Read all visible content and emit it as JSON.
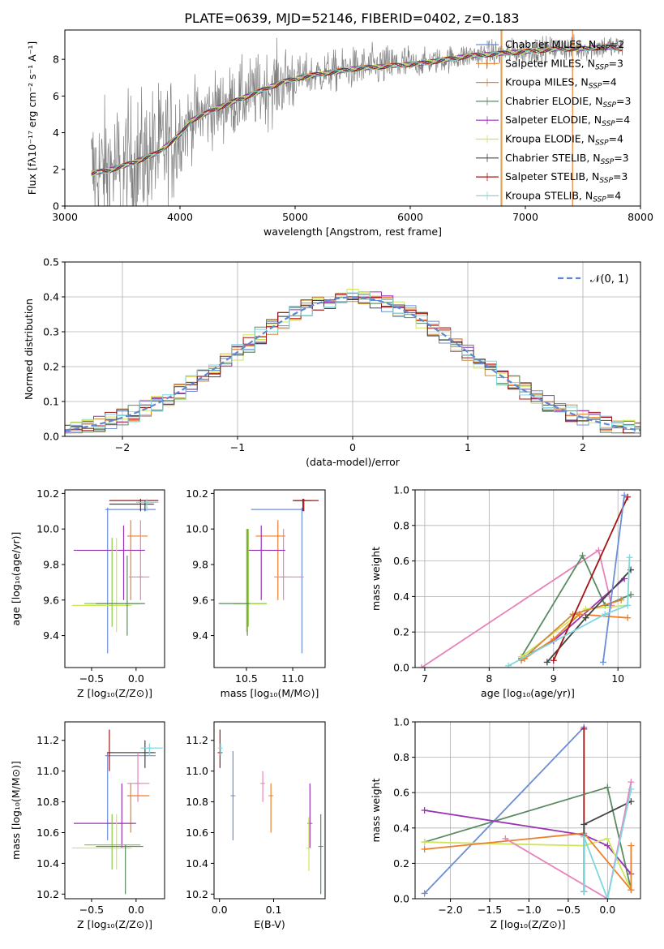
{
  "title": "PLATE=0639, MJD=52146, FIBERID=0402, z=0.183",
  "colors": {
    "CM": "#6b8ed6",
    "SM": "#ee7e2a",
    "KM": "#d1883a",
    "CE": "#5b8a63",
    "SE": "#9932b5",
    "KE": "#cfe65a",
    "CS": "#444444",
    "SS": "#a31515",
    "KS": "#7fd8de",
    "pink": "#e584bb",
    "lime": "#8acd3c",
    "data": "#808080",
    "normal": "#5f87d6"
  },
  "chart_data": [
    {
      "id": "spectrum",
      "type": "line",
      "xlabel": "wavelength [Angstrom, rest frame]",
      "ylabel": "Flux [fλ10⁻¹⁷ erg cm⁻² s⁻¹ A⁻¹]",
      "xlim": [
        3000,
        8000
      ],
      "ylim": [
        0,
        9.6
      ],
      "xticks": [
        "3000",
        "4000",
        "5000",
        "6000",
        "7000",
        "8000"
      ],
      "yticks": [
        "0",
        "2",
        "4",
        "6",
        "8"
      ],
      "legend": "upper-right",
      "continuum": {
        "x": [
          3230,
          3400,
          3600,
          3800,
          4000,
          4100,
          4300,
          4500,
          4700,
          4900,
          5100,
          5300,
          5500,
          5700,
          5900,
          6100,
          6300,
          6500,
          6700,
          6900,
          7100,
          7300,
          7500,
          7700,
          7850
        ],
        "y": [
          1.8,
          2.0,
          2.4,
          2.9,
          3.9,
          4.7,
          5.3,
          5.8,
          6.3,
          6.8,
          7.1,
          7.3,
          7.5,
          7.6,
          7.7,
          7.8,
          8.0,
          8.2,
          8.3,
          8.4,
          8.5,
          8.6,
          8.6,
          8.7,
          8.6
        ]
      },
      "series": [
        {
          "key": "CM",
          "name": "Chabrier MILES, N_SSP=2",
          "label": "Chabrier MILES, N",
          "sub": "SSP",
          "val": "=2"
        },
        {
          "key": "SM",
          "name": "Salpeter MILES, N_SSP=3",
          "label": "Salpeter MILES, N",
          "sub": "SSP",
          "val": "=3"
        },
        {
          "key": "KM",
          "name": "Kroupa MILES, N_SSP=4",
          "label": "Kroupa MILES, N",
          "sub": "SSP",
          "val": "=4"
        },
        {
          "key": "CE",
          "name": "Chabrier ELODIE, N_SSP=3",
          "label": "Chabrier ELODIE, N",
          "sub": "SSP",
          "val": "=3"
        },
        {
          "key": "SE",
          "name": "Salpeter ELODIE, N_SSP=4",
          "label": "Salpeter ELODIE, N",
          "sub": "SSP",
          "val": "=4"
        },
        {
          "key": "KE",
          "name": "Kroupa ELODIE, N_SSP=4",
          "label": "Kroupa ELODIE, N",
          "sub": "SSP",
          "val": "=4"
        },
        {
          "key": "CS",
          "name": "Chabrier STELIB, N_SSP=3",
          "label": "Chabrier STELIB, N",
          "sub": "SSP",
          "val": "=3"
        },
        {
          "key": "SS",
          "name": "Salpeter STELIB, N_SSP=3",
          "label": "Salpeter STELIB, N",
          "sub": "SSP",
          "val": "=3"
        },
        {
          "key": "KS",
          "name": "Kroupa STELIB, N_SSP=4",
          "label": "Kroupa STELIB, N",
          "sub": "SSP",
          "val": "=4"
        }
      ]
    },
    {
      "id": "residuals",
      "type": "line",
      "xlabel": "(data-model)/error",
      "ylabel": "Normed distribution",
      "xlim": [
        -2.5,
        2.5
      ],
      "ylim": [
        0,
        0.5
      ],
      "xticks": [
        -2,
        -1,
        0,
        1,
        2
      ],
      "xticklabels": [
        "−2",
        "−1",
        "0",
        "1",
        "2"
      ],
      "yticks": [
        0,
        0.1,
        0.2,
        0.3,
        0.4,
        0.5
      ],
      "yticklabels": [
        "0.0",
        "0.1",
        "0.2",
        "0.3",
        "0.4",
        "0.5"
      ],
      "grid": true,
      "legend": "upper-right",
      "normal_label": "𝒩(0, 1)"
    },
    {
      "id": "age_vs_Z",
      "type": "scatter",
      "xlabel": "Z [log₁₀(Z/Z⊙)]",
      "ylabel": "age  [log₁₀(age/yr)]",
      "xlim": [
        -0.8,
        0.32
      ],
      "ylim": [
        9.22,
        10.22
      ],
      "xticks": [
        -0.5,
        0.0
      ],
      "xticklabels": [
        "−0.5",
        "0.0"
      ],
      "yticks": [
        9.4,
        9.6,
        9.8,
        10.0,
        10.2
      ],
      "yticklabels": [
        "9.4",
        "9.6",
        "9.8",
        "10.0",
        "10.2"
      ],
      "points": [
        {
          "c": "CM",
          "x": -0.32,
          "xl": -0.34,
          "xh": 0.22,
          "y": 10.11,
          "yl": 9.3,
          "yh": 10.12
        },
        {
          "c": "SM",
          "x": -0.06,
          "xl": -0.1,
          "xh": 0.13,
          "y": 9.96,
          "yl": 9.6,
          "yh": 10.05
        },
        {
          "c": "pink",
          "x": 0.05,
          "xl": -0.08,
          "xh": 0.15,
          "y": 9.73,
          "yl": 9.6,
          "yh": 10.05
        },
        {
          "c": "SE",
          "x": -0.14,
          "xl": -0.7,
          "xh": 0.1,
          "y": 9.88,
          "yl": 9.6,
          "yh": 10.02
        },
        {
          "c": "KE",
          "x": -0.22,
          "xl": -0.72,
          "xh": -0.05,
          "y": 9.57,
          "yl": 9.42,
          "yh": 9.95
        },
        {
          "c": "lime",
          "x": -0.27,
          "xl": -0.58,
          "xh": 0.05,
          "y": 9.58,
          "yl": 9.45,
          "yh": 9.95
        },
        {
          "c": "CE",
          "x": -0.1,
          "xl": -0.45,
          "xh": 0.1,
          "y": 9.58,
          "yl": 9.4,
          "yh": 9.85
        },
        {
          "c": "CS",
          "x": 0.1,
          "xl": -0.3,
          "xh": 0.2,
          "y": 10.14,
          "yl": 10.1,
          "yh": 10.16
        },
        {
          "c": "SS",
          "x": 0.05,
          "xl": -0.3,
          "xh": 0.25,
          "y": 10.16,
          "yl": 10.1,
          "yh": 10.17
        },
        {
          "c": "KS",
          "x": 0.12,
          "xl": 0.0,
          "xh": 0.25,
          "y": 10.15,
          "yl": 10.1,
          "yh": 10.17
        }
      ]
    },
    {
      "id": "age_vs_mass",
      "type": "scatter",
      "xlabel": "mass [log₁₀(M/M⊙)]",
      "ylabel": "",
      "xlim": [
        10.15,
        11.35
      ],
      "ylim": [
        9.22,
        10.22
      ],
      "xticks": [
        10.5,
        11.0
      ],
      "xticklabels": [
        "10.5",
        "11.0"
      ],
      "yticks": [
        9.4,
        9.6,
        9.8,
        10.0,
        10.2
      ],
      "yticklabels": [
        "9.4",
        "9.6",
        "9.8",
        "10.0",
        "10.2"
      ],
      "points": [
        {
          "c": "CM",
          "x": 11.1,
          "xl": 10.55,
          "xh": 11.12,
          "y": 10.11,
          "yl": 9.3,
          "yh": 10.12
        },
        {
          "c": "SM",
          "x": 10.84,
          "xl": 10.6,
          "xh": 10.92,
          "y": 9.96,
          "yl": 9.6,
          "yh": 10.05
        },
        {
          "c": "pink",
          "x": 10.9,
          "xl": 10.8,
          "xh": 11.12,
          "y": 9.73,
          "yl": 9.6,
          "yh": 10.0
        },
        {
          "c": "SE",
          "x": 10.66,
          "xl": 10.5,
          "xh": 10.92,
          "y": 9.88,
          "yl": 9.6,
          "yh": 10.02
        },
        {
          "c": "KE",
          "x": 10.5,
          "xl": 10.36,
          "xh": 10.7,
          "y": 9.58,
          "yl": 9.42,
          "yh": 10.0
        },
        {
          "c": "lime",
          "x": 10.52,
          "xl": 10.36,
          "xh": 10.72,
          "y": 9.58,
          "yl": 9.45,
          "yh": 10.0
        },
        {
          "c": "CE",
          "x": 10.51,
          "xl": 10.2,
          "xh": 10.52,
          "y": 9.58,
          "yl": 9.4,
          "yh": 10.0
        },
        {
          "c": "CS",
          "x": 11.11,
          "xl": 11.02,
          "xh": 11.2,
          "y": 10.16,
          "yl": 10.1,
          "yh": 10.17
        },
        {
          "c": "SS",
          "x": 11.12,
          "xl": 11.0,
          "xh": 11.28,
          "y": 10.16,
          "yl": 10.1,
          "yh": 10.17
        }
      ]
    },
    {
      "id": "massweight_vs_age",
      "type": "line",
      "xlabel": "age  [log₁₀(age/yr)]",
      "ylabel": "mass weight",
      "xlim": [
        6.85,
        10.35
      ],
      "ylim": [
        0,
        1
      ],
      "xticks": [
        7,
        8,
        9,
        10
      ],
      "xticklabels": [
        "7",
        "8",
        "9",
        "10"
      ],
      "yticks": [
        0,
        0.2,
        0.4,
        0.6,
        0.8,
        1.0
      ],
      "yticklabels": [
        "0.0",
        "0.2",
        "0.4",
        "0.6",
        "0.8",
        "1.0"
      ],
      "grid": true,
      "series": [
        {
          "c": "pink",
          "x": [
            6.95,
            9.7,
            9.9
          ],
          "y": [
            0.0,
            0.66,
            0.35
          ]
        },
        {
          "c": "CE",
          "x": [
            8.5,
            9.45,
            9.8,
            10.2
          ],
          "y": [
            0.06,
            0.63,
            0.35,
            0.41
          ]
        },
        {
          "c": "SE",
          "x": [
            8.5,
            9.0,
            10.1
          ],
          "y": [
            0.05,
            0.15,
            0.5
          ]
        },
        {
          "c": "KE",
          "x": [
            8.5,
            9.5,
            10.15
          ],
          "y": [
            0.06,
            0.33,
            0.35
          ]
        },
        {
          "c": "SM",
          "x": [
            8.55,
            9.0,
            9.4,
            10.15
          ],
          "y": [
            0.05,
            0.16,
            0.3,
            0.28
          ]
        },
        {
          "c": "KM",
          "x": [
            8.5,
            9.3,
            10.05
          ],
          "y": [
            0.04,
            0.3,
            0.38
          ]
        },
        {
          "c": "CS",
          "x": [
            8.9,
            9.5,
            10.2
          ],
          "y": [
            0.03,
            0.28,
            0.55
          ]
        },
        {
          "c": "SS",
          "x": [
            9.0,
            10.15
          ],
          "y": [
            0.04,
            0.96
          ]
        },
        {
          "c": "CM",
          "x": [
            9.77,
            10.1
          ],
          "y": [
            0.03,
            0.97
          ]
        },
        {
          "c": "KS",
          "x": [
            8.3,
            9.8,
            10.15,
            10.18
          ],
          "y": [
            0.01,
            0.3,
            0.35,
            0.62
          ]
        }
      ]
    },
    {
      "id": "mass_vs_Z",
      "type": "scatter",
      "xlabel": "Z [log₁₀(Z/Z⊙)]",
      "ylabel": "mass [log₁₀(M/M⊙)]",
      "xlim": [
        -0.8,
        0.32
      ],
      "ylim": [
        10.17,
        11.32
      ],
      "xticks": [
        -0.5,
        0.0
      ],
      "xticklabels": [
        "−0.5",
        "0.0"
      ],
      "yticks": [
        10.2,
        10.4,
        10.6,
        10.8,
        11.0,
        11.2
      ],
      "yticklabels": [
        "10.2",
        "10.4",
        "10.6",
        "10.8",
        "11.0",
        "11.2"
      ],
      "points": [
        {
          "c": "CM",
          "x": -0.32,
          "xl": -0.34,
          "xh": 0.22,
          "y": 11.1,
          "yl": 10.55,
          "yh": 11.12
        },
        {
          "c": "SS",
          "x": -0.3,
          "xl": -0.32,
          "xh": 0.2,
          "y": 11.12,
          "yl": 11.0,
          "yh": 11.27
        },
        {
          "c": "CS",
          "x": 0.1,
          "xl": -0.3,
          "xh": 0.22,
          "y": 11.12,
          "yl": 11.02,
          "yh": 11.2
        },
        {
          "c": "KS",
          "x": 0.15,
          "xl": 0.05,
          "xh": 0.3,
          "y": 11.15,
          "yl": 11.1,
          "yh": 11.18
        },
        {
          "c": "pink",
          "x": 0.02,
          "xl": -0.1,
          "xh": 0.15,
          "y": 10.92,
          "yl": 10.8,
          "yh": 11.12
        },
        {
          "c": "SM",
          "x": -0.06,
          "xl": -0.1,
          "xh": 0.15,
          "y": 10.84,
          "yl": 10.6,
          "yh": 10.92
        },
        {
          "c": "SE",
          "x": -0.16,
          "xl": -0.7,
          "xh": 0.0,
          "y": 10.66,
          "yl": 10.5,
          "yh": 10.92
        },
        {
          "c": "KE",
          "x": -0.22,
          "xl": -0.72,
          "xh": -0.05,
          "y": 10.5,
          "yl": 10.36,
          "yh": 10.72
        },
        {
          "c": "lime",
          "x": -0.27,
          "xl": -0.58,
          "xh": 0.05,
          "y": 10.52,
          "yl": 10.36,
          "yh": 10.72
        },
        {
          "c": "CE",
          "x": -0.12,
          "xl": -0.45,
          "xh": 0.08,
          "y": 10.51,
          "yl": 10.2,
          "yh": 10.52
        }
      ]
    },
    {
      "id": "mass_vs_EBV",
      "type": "scatter",
      "xlabel": "E(B-V)",
      "ylabel": "",
      "xlim": [
        -0.01,
        0.195
      ],
      "ylim": [
        10.17,
        11.32
      ],
      "xticks": [
        0.0,
        0.1
      ],
      "xticklabels": [
        "0.0",
        "0.1"
      ],
      "yticks": [
        10.2,
        10.4,
        10.6,
        10.8,
        11.0,
        11.2
      ],
      "yticklabels": [
        "10.2",
        "10.4",
        "10.6",
        "10.8",
        "11.0",
        "11.2"
      ],
      "points": [
        {
          "c": "SS",
          "x": 0.001,
          "y": 11.12,
          "yl": 11.02,
          "yh": 11.27
        },
        {
          "c": "KS",
          "x": 0.002,
          "y": 11.15,
          "yl": 11.1,
          "yh": 11.18
        },
        {
          "c": "CM",
          "x": 0.025,
          "y": 10.84,
          "yl": 10.55,
          "yh": 11.13
        },
        {
          "c": "pink",
          "x": 0.08,
          "y": 10.92,
          "yl": 10.8,
          "yh": 11.0
        },
        {
          "c": "SM",
          "x": 0.095,
          "y": 10.84,
          "yl": 10.6,
          "yh": 10.92
        },
        {
          "c": "SE",
          "x": 0.167,
          "y": 10.66,
          "yl": 10.5,
          "yh": 10.92
        },
        {
          "c": "KE",
          "x": 0.165,
          "y": 10.5,
          "yl": 10.35,
          "yh": 10.7
        },
        {
          "c": "CE",
          "x": 0.187,
          "y": 10.51,
          "yl": 10.2,
          "yh": 10.72
        }
      ]
    },
    {
      "id": "massweight_vs_Z",
      "type": "line",
      "xlabel": "Z [log₁₀(Z/Z⊙)]",
      "ylabel": "mass weight",
      "xlim": [
        -2.45,
        0.42
      ],
      "ylim": [
        0,
        1
      ],
      "xticks": [
        -2.0,
        -1.5,
        -1.0,
        -0.5,
        0.0
      ],
      "xticklabels": [
        "−2.0",
        "−1.5",
        "−1.0",
        "−0.5",
        "0.0"
      ],
      "yticks": [
        0,
        0.2,
        0.4,
        0.6,
        0.8,
        1.0
      ],
      "yticklabels": [
        "0.0",
        "0.2",
        "0.4",
        "0.6",
        "0.8",
        "1.0"
      ],
      "grid": true,
      "series": [
        {
          "c": "CM",
          "x": [
            -2.33,
            -0.3
          ],
          "y": [
            0.03,
            0.97
          ]
        },
        {
          "c": "SS",
          "x": [
            -0.3,
            -0.3
          ],
          "y": [
            0.04,
            0.96
          ]
        },
        {
          "c": "CE",
          "x": [
            -2.33,
            -0.0,
            0.3
          ],
          "y": [
            0.32,
            0.63,
            0.05
          ]
        },
        {
          "c": "SE",
          "x": [
            -2.33,
            -0.3,
            0.0,
            0.3
          ],
          "y": [
            0.5,
            0.36,
            0.3,
            0.14
          ]
        },
        {
          "c": "KE",
          "x": [
            -2.33,
            -0.3,
            0.0,
            0.3
          ],
          "y": [
            0.32,
            0.3,
            0.34,
            0.05
          ]
        },
        {
          "c": "SM",
          "x": [
            -2.33,
            -0.3,
            0.3,
            0.3
          ],
          "y": [
            0.28,
            0.37,
            0.05,
            0.3
          ]
        },
        {
          "c": "CS",
          "x": [
            -0.3,
            -0.3,
            0.3
          ],
          "y": [
            0.04,
            0.42,
            0.55
          ]
        },
        {
          "c": "pink",
          "x": [
            -1.3,
            0.0,
            0.3
          ],
          "y": [
            0.34,
            0.0,
            0.66
          ]
        },
        {
          "c": "KS",
          "x": [
            -0.3,
            -0.3,
            0.0,
            0.3
          ],
          "y": [
            0.04,
            0.35,
            0.0,
            0.62
          ]
        }
      ]
    }
  ]
}
